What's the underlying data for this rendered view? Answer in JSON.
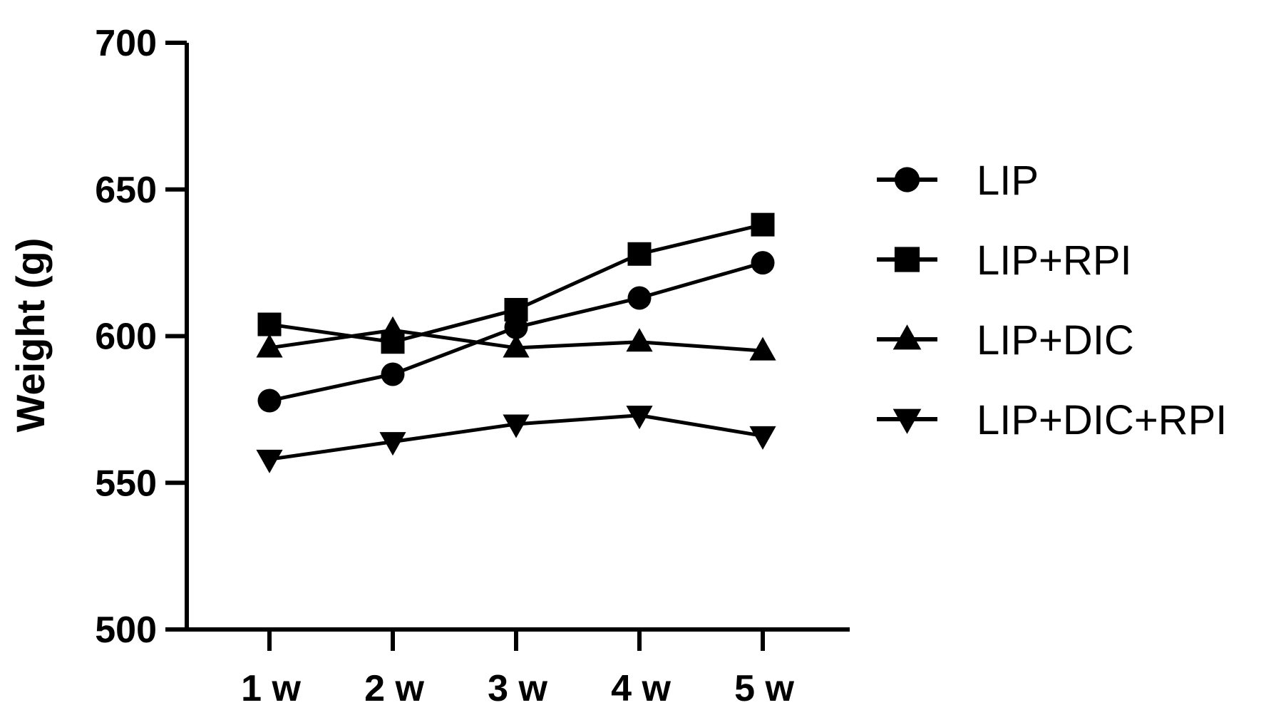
{
  "chart_data": {
    "type": "line",
    "title": "",
    "xlabel": "",
    "ylabel": "Weight (g)",
    "categories": [
      "1 w",
      "2 w",
      "3 w",
      "4 w",
      "5 w"
    ],
    "ylim": [
      500,
      700
    ],
    "yticks": [
      500,
      550,
      600,
      650,
      700
    ],
    "grid": false,
    "legend_position": "right",
    "series": [
      {
        "name": "LIP",
        "marker": "circle",
        "color": "#000000",
        "values": [
          578,
          587,
          603,
          613,
          625
        ]
      },
      {
        "name": "LIP+RPI",
        "marker": "square",
        "color": "#000000",
        "values": [
          604,
          598,
          609,
          628,
          638
        ]
      },
      {
        "name": "LIP+DIC",
        "marker": "triangle-up",
        "color": "#000000",
        "values": [
          596,
          602,
          596,
          598,
          595
        ]
      },
      {
        "name": "LIP+DIC+RPI",
        "marker": "triangle-down",
        "color": "#000000",
        "values": [
          558,
          564,
          570,
          573,
          566
        ]
      }
    ]
  }
}
